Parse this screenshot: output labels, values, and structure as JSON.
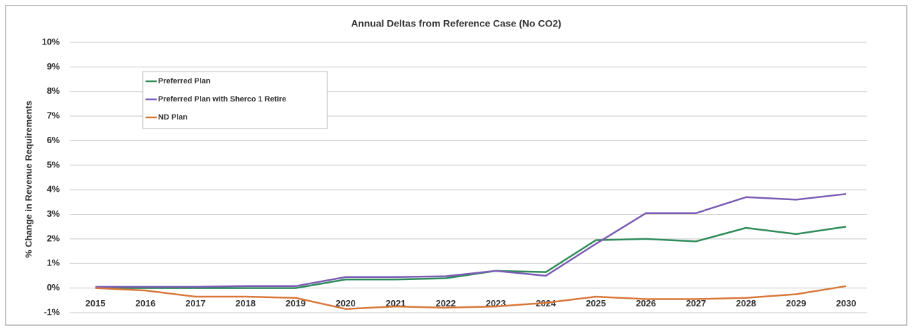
{
  "chart_data": {
    "type": "line",
    "title": "Annual Deltas from Reference Case (No CO2)",
    "y_label": "% Change in Revenue Requirements",
    "categories": [
      "2015",
      "2016",
      "2017",
      "2018",
      "2019",
      "2020",
      "2021",
      "2022",
      "2023",
      "2024",
      "2025",
      "2026",
      "2027",
      "2028",
      "2029",
      "2030"
    ],
    "series": [
      {
        "name": "Preferred Plan",
        "color": "#2e8b5a",
        "values": [
          0.0,
          0.0,
          0.0,
          0.0,
          0.0,
          0.35,
          0.35,
          0.4,
          0.7,
          0.65,
          1.95,
          2.0,
          1.9,
          2.45,
          2.2,
          2.5
        ]
      },
      {
        "name": "Preferred Plan with Sherco 1 Retire",
        "color": "#7a5cb4",
        "values": [
          0.05,
          0.05,
          0.05,
          0.08,
          0.08,
          0.45,
          0.45,
          0.48,
          0.7,
          0.5,
          1.8,
          3.05,
          3.05,
          3.7,
          3.6,
          3.83
        ]
      },
      {
        "name": "ND Plan",
        "color": "#d9773a",
        "values": [
          0.0,
          -0.1,
          -0.35,
          -0.35,
          -0.4,
          -0.85,
          -0.75,
          -0.8,
          -0.75,
          -0.6,
          -0.35,
          -0.45,
          -0.45,
          -0.4,
          -0.25,
          0.08
        ]
      }
    ],
    "ylim": [
      -1,
      10
    ],
    "yticks": [
      {
        "value": -1,
        "label": "-1%"
      },
      {
        "value": 0,
        "label": "0%"
      },
      {
        "value": 1,
        "label": "1%"
      },
      {
        "value": 2,
        "label": "2%"
      },
      {
        "value": 3,
        "label": "3%"
      },
      {
        "value": 4,
        "label": "4%"
      },
      {
        "value": 5,
        "label": "5%"
      },
      {
        "value": 6,
        "label": "6%"
      },
      {
        "value": 7,
        "label": "7%"
      },
      {
        "value": 8,
        "label": "8%"
      },
      {
        "value": 9,
        "label": "9%"
      },
      {
        "value": 10,
        "label": "10%"
      }
    ],
    "grid": true,
    "legend": "upper left"
  }
}
